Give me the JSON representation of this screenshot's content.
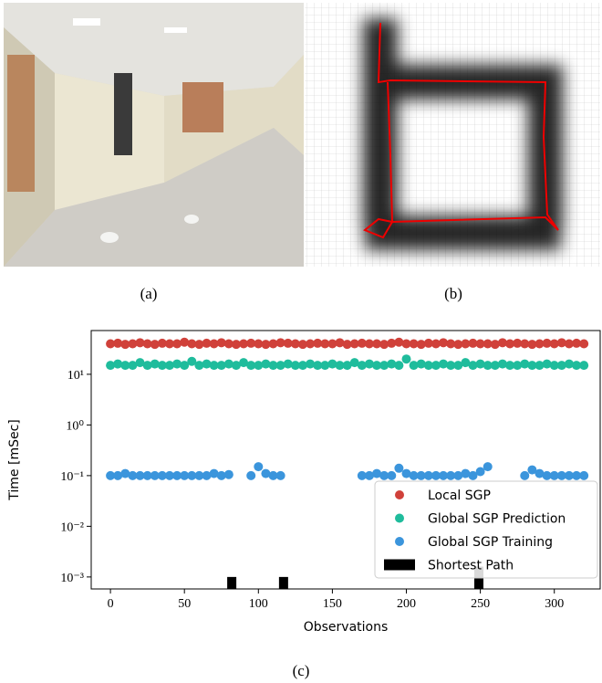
{
  "captions": [
    "(a)",
    "(b)",
    "(c)"
  ],
  "chart_data": {
    "type": "scatter",
    "x_label": "Observations",
    "y_label": "Time [mSec]",
    "log_y": true,
    "xlim": [
      -13,
      331
    ],
    "ylim": [
      0.00058,
      73
    ],
    "xticks": [
      0,
      50,
      100,
      150,
      200,
      250,
      300
    ],
    "yticks": [
      {
        "value": 0.001,
        "label": "10⁻³"
      },
      {
        "value": 0.01,
        "label": "10⁻²"
      },
      {
        "value": 0.1,
        "label": "10⁻¹"
      },
      {
        "value": 1,
        "label": "10⁰"
      },
      {
        "value": 10,
        "label": "10¹"
      }
    ],
    "legend": "lower right",
    "x": [
      0,
      5,
      10,
      15,
      20,
      25,
      30,
      35,
      40,
      45,
      50,
      55,
      60,
      65,
      70,
      75,
      80,
      85,
      90,
      95,
      100,
      105,
      110,
      115,
      120,
      125,
      130,
      135,
      140,
      145,
      150,
      155,
      160,
      165,
      170,
      175,
      180,
      185,
      190,
      195,
      200,
      205,
      210,
      215,
      220,
      225,
      230,
      235,
      240,
      245,
      250,
      255,
      260,
      265,
      270,
      275,
      280,
      285,
      290,
      295,
      300,
      305,
      310,
      315,
      320
    ],
    "series": [
      {
        "name": "Local SGP",
        "color": "#d0413a",
        "values": [
          40,
          41,
          39,
          40,
          42,
          40,
          39,
          41,
          40,
          40,
          43,
          40,
          39,
          41,
          40,
          42,
          40,
          39,
          40,
          41,
          40,
          39,
          40,
          42,
          41,
          40,
          39,
          40,
          41,
          40,
          40,
          42,
          39,
          40,
          41,
          40,
          40,
          39,
          41,
          43,
          40,
          40,
          39,
          41,
          40,
          42,
          40,
          39,
          40,
          41,
          40,
          40,
          39,
          42,
          40,
          41,
          40,
          39,
          40,
          41,
          40,
          42,
          40,
          41,
          40
        ]
      },
      {
        "name": "Global SGP Prediction",
        "color": "#1fbc9c",
        "values": [
          15,
          16,
          15,
          15,
          17,
          15,
          16,
          15,
          15,
          16,
          15,
          18,
          15,
          16,
          15,
          15,
          16,
          15,
          17,
          15,
          15,
          16,
          15,
          15,
          16,
          15,
          15,
          16,
          15,
          15,
          16,
          15,
          15,
          17,
          15,
          16,
          15,
          15,
          16,
          15,
          20,
          15,
          16,
          15,
          15,
          16,
          15,
          15,
          17,
          15,
          16,
          15,
          15,
          16,
          15,
          15,
          16,
          15,
          15,
          16,
          15,
          15,
          16,
          15,
          15
        ]
      },
      {
        "name": "Global SGP Training",
        "color": "#3b95dc",
        "values": [
          0.1,
          0.1,
          0.11,
          0.1,
          0.1,
          0.1,
          0.1,
          0.1,
          0.1,
          0.1,
          0.1,
          0.1,
          0.1,
          0.1,
          0.11,
          0.1,
          0.105,
          null,
          null,
          0.1,
          0.15,
          0.11,
          0.1,
          0.1,
          null,
          null,
          null,
          null,
          null,
          null,
          null,
          null,
          null,
          null,
          0.1,
          0.1,
          0.11,
          0.1,
          0.1,
          0.14,
          0.11,
          0.1,
          0.1,
          0.1,
          0.1,
          0.1,
          0.1,
          0.1,
          0.11,
          0.1,
          0.12,
          0.15,
          null,
          null,
          null,
          null,
          0.1,
          0.13,
          0.11,
          0.1,
          0.1,
          0.1,
          0.1,
          0.1,
          0.1
        ]
      },
      {
        "name": "Shortest Path",
        "color": "#000000",
        "type": "bar",
        "x": [
          82,
          117,
          249
        ],
        "values": [
          0.001,
          0.001,
          0.0016
        ]
      }
    ]
  }
}
